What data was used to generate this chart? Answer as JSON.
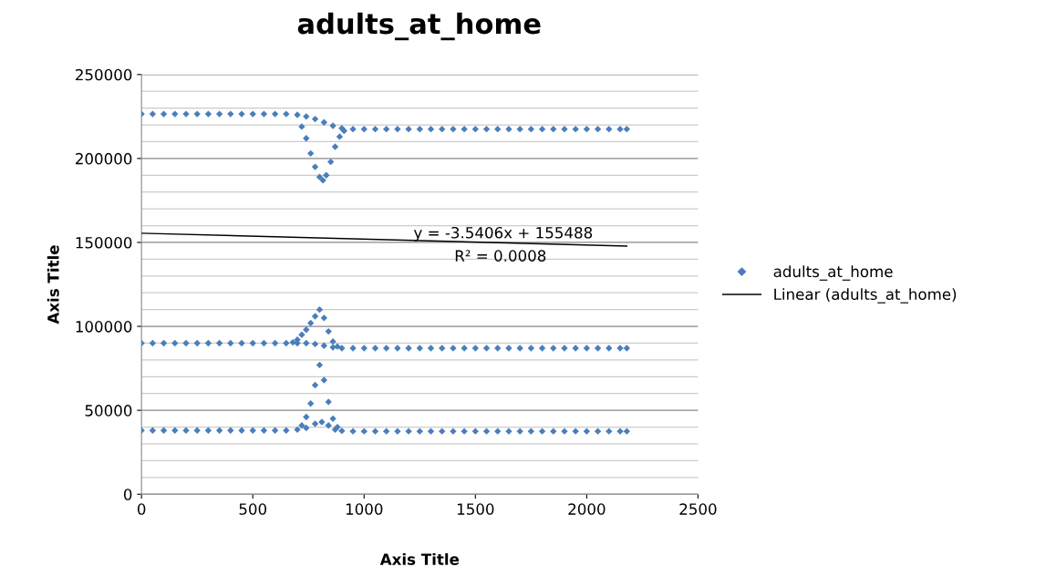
{
  "chart_data": {
    "type": "scatter",
    "title": "adults_at_home",
    "xlabel": "Axis Title",
    "ylabel": "Axis Title",
    "xlim": [
      0,
      2500
    ],
    "xticks": [
      0,
      500,
      1000,
      1500,
      2000,
      2500
    ],
    "ylim": [
      0,
      250000
    ],
    "yticks": [
      0,
      {
        "value": 10000,
        "label": null
      },
      {
        "value": 20000,
        "label": null
      },
      {
        "value": 30000,
        "label": null
      },
      {
        "value": 40000,
        "label": null
      },
      50000,
      {
        "value": 60000,
        "label": null
      },
      {
        "value": 70000,
        "label": null
      },
      {
        "value": 80000,
        "label": null
      },
      {
        "value": 90000,
        "label": null
      },
      100000,
      {
        "value": 110000,
        "label": null
      },
      {
        "value": 120000,
        "label": null
      },
      {
        "value": 130000,
        "label": null
      },
      {
        "value": 140000,
        "label": null
      },
      150000,
      {
        "value": 160000,
        "label": null
      },
      {
        "value": 170000,
        "label": null
      },
      {
        "value": 180000,
        "label": null
      },
      {
        "value": 190000,
        "label": null
      },
      200000,
      {
        "value": 210000,
        "label": null
      },
      {
        "value": 220000,
        "label": null
      },
      {
        "value": 230000,
        "label": null
      },
      {
        "value": 240000,
        "label": null
      },
      250000
    ],
    "grid": "y",
    "legend": "right",
    "annotations": [
      "y = -3.5406x + 155488",
      "R² = 0.0008"
    ],
    "series": [
      {
        "name": "adults_at_home",
        "marker": "diamond",
        "color": "#4a7ebb",
        "x": [
          0,
          50,
          100,
          150,
          200,
          250,
          300,
          350,
          400,
          450,
          500,
          550,
          600,
          650,
          700,
          740,
          780,
          820,
          860,
          900,
          950,
          1000,
          1050,
          1100,
          1150,
          1200,
          1250,
          1300,
          1350,
          1400,
          1450,
          1500,
          1550,
          1600,
          1650,
          1700,
          1750,
          1800,
          1850,
          1900,
          1950,
          2000,
          2050,
          2100,
          2150,
          2180,
          720,
          740,
          760,
          780,
          800,
          815,
          830,
          850,
          870,
          890,
          910,
          0,
          50,
          100,
          150,
          200,
          250,
          300,
          350,
          400,
          450,
          500,
          550,
          600,
          650,
          680,
          700,
          720,
          740,
          760,
          780,
          800,
          820,
          840,
          860,
          880,
          700,
          740,
          780,
          820,
          860,
          900,
          950,
          1000,
          1050,
          1100,
          1150,
          1200,
          1250,
          1300,
          1350,
          1400,
          1450,
          1500,
          1550,
          1600,
          1650,
          1700,
          1750,
          1800,
          1850,
          1900,
          1950,
          2000,
          2050,
          2100,
          2150,
          2180,
          0,
          50,
          100,
          150,
          200,
          250,
          300,
          350,
          400,
          450,
          500,
          550,
          600,
          650,
          700,
          740,
          780,
          810,
          840,
          870,
          900,
          720,
          740,
          760,
          780,
          800,
          820,
          840,
          860,
          880,
          950,
          1000,
          1050,
          1100,
          1150,
          1200,
          1250,
          1300,
          1350,
          1400,
          1450,
          1500,
          1550,
          1600,
          1650,
          1700,
          1750,
          1800,
          1850,
          1900,
          1950,
          2000,
          2050,
          2100,
          2150,
          2180
        ],
        "values": [
          226500,
          226500,
          226500,
          226500,
          226500,
          226500,
          226500,
          226500,
          226500,
          226500,
          226500,
          226500,
          226500,
          226500,
          226000,
          225000,
          223500,
          221500,
          219500,
          218000,
          217500,
          217500,
          217500,
          217500,
          217500,
          217500,
          217500,
          217500,
          217500,
          217500,
          217500,
          217500,
          217500,
          217500,
          217500,
          217500,
          217500,
          217500,
          217500,
          217500,
          217500,
          217500,
          217500,
          217500,
          217500,
          217500,
          219000,
          212000,
          203000,
          195000,
          189000,
          187000,
          190000,
          198000,
          207000,
          213000,
          216500,
          90000,
          90000,
          90000,
          90000,
          90000,
          90000,
          90000,
          90000,
          90000,
          90000,
          90000,
          90000,
          90000,
          90000,
          90500,
          92000,
          95000,
          98000,
          102000,
          106000,
          110000,
          105000,
          97000,
          91000,
          88000,
          90000,
          90000,
          89500,
          88500,
          87500,
          87000,
          87000,
          87000,
          87000,
          87000,
          87000,
          87000,
          87000,
          87000,
          87000,
          87000,
          87000,
          87000,
          87000,
          87000,
          87000,
          87000,
          87000,
          87000,
          87000,
          87000,
          87000,
          87000,
          87000,
          87000,
          87000,
          87000,
          38000,
          38000,
          38000,
          38000,
          38000,
          38000,
          38000,
          38000,
          38000,
          38000,
          38000,
          38000,
          38000,
          38000,
          38500,
          39500,
          42000,
          43000,
          41000,
          38500,
          37800,
          41000,
          46000,
          54000,
          65000,
          77000,
          68000,
          55000,
          45000,
          40000,
          37500,
          37500,
          37500,
          37500,
          37500,
          37500,
          37500,
          37500,
          37500,
          37500,
          37500,
          37500,
          37500,
          37500,
          37500,
          37500,
          37500,
          37500,
          37500,
          37500,
          37500,
          37500,
          37500,
          37500,
          37500,
          37500
        ]
      },
      {
        "name": "Linear (adults_at_home)",
        "type": "line",
        "marker": "none",
        "line_style": "solid",
        "color": "#000000",
        "x": [
          0,
          2180
        ],
        "values": [
          155500,
          147800
        ]
      }
    ]
  }
}
